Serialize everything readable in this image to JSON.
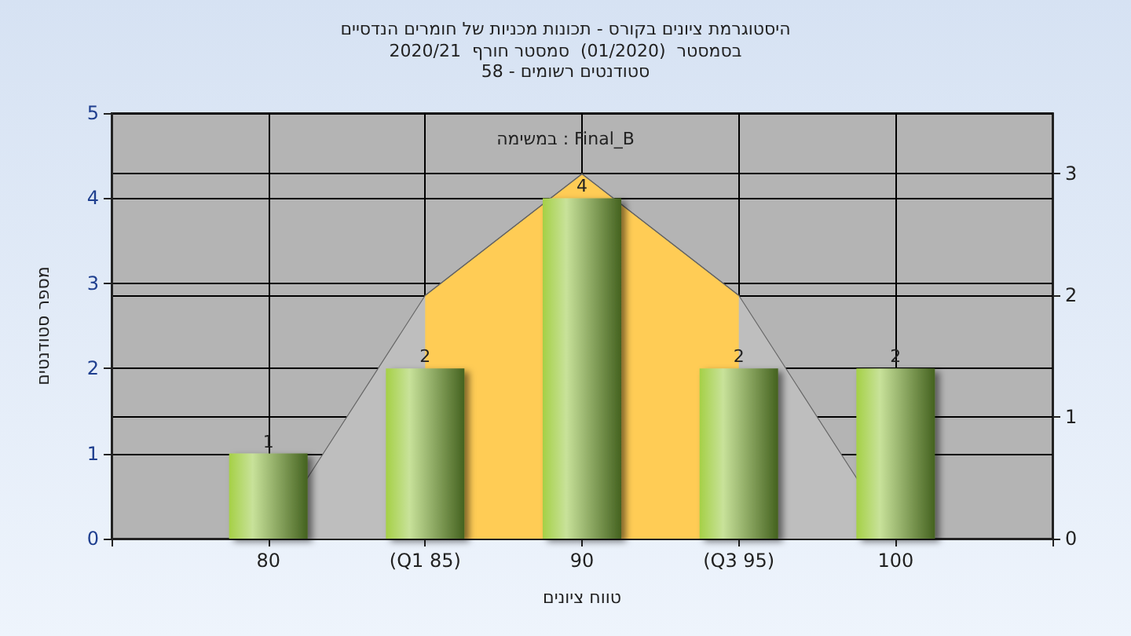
{
  "chart_data": {
    "type": "bar",
    "title": "היסטוגרמת ציונים בקורס - תכונות מכניות של חומרים הנדסיים",
    "subtitle": "בסמסטר  (01/2020)  סמסטר חורף  2020/21\nסטודנטים רשומים - 58",
    "xlabel": "טווח ציונים",
    "ylabel": "מספר סטודנטים",
    "annotations": [
      "במשימה : Final_B"
    ],
    "categories": [
      "80",
      "(Q1 85)",
      "90",
      "(Q3 95)",
      "100"
    ],
    "series": [
      {
        "type": "area",
        "axis": "y2",
        "color": "#bebebe",
        "values": [
          0,
          2,
          3,
          2,
          0
        ]
      },
      {
        "type": "area",
        "axis": "y2",
        "color": "#ffcc55",
        "values": [
          null,
          2,
          3,
          2,
          null
        ]
      },
      {
        "color": "#8fb34a",
        "values": [
          1,
          2,
          4,
          2,
          2
        ],
        "value_labels": [
          "1",
          "2",
          "4",
          "2",
          "2"
        ]
      }
    ],
    "ylim": [
      0,
      5
    ],
    "yticks": [
      0,
      1,
      2,
      3,
      4,
      5
    ],
    "y2lim": [
      0,
      3.5
    ],
    "y2ticks": [
      0,
      1,
      2,
      3
    ],
    "grid": true
  }
}
